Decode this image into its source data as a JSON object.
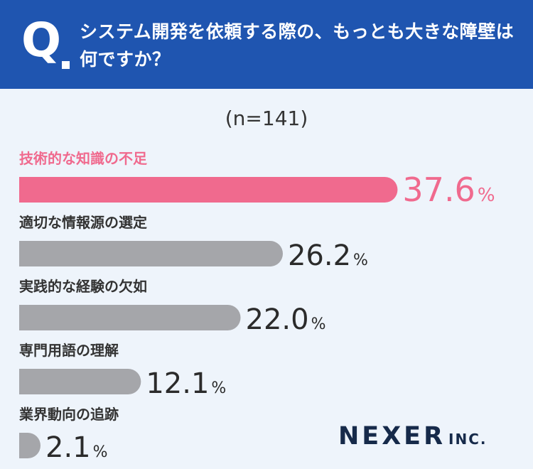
{
  "header": {
    "q_label": "Q",
    "question": "システム開発を依頼する際の、もっとも大きな障壁は何ですか？"
  },
  "sample_size": "(n=141)",
  "chart_data": {
    "type": "bar",
    "orientation": "horizontal",
    "title": "システム開発を依頼する際の、もっとも大きな障壁は何ですか？",
    "categories": [
      "技術的な知識の不足",
      "適切な情報源の選定",
      "実践的な経験の欠如",
      "専門用語の理解",
      "業界動向の追跡"
    ],
    "values": [
      37.6,
      26.2,
      22.0,
      12.1,
      2.1
    ],
    "value_labels": [
      "37.6",
      "26.2",
      "22.0",
      "12.1",
      "2.1"
    ],
    "unit": "%",
    "xlim": [
      0,
      100
    ],
    "highlight_index": 0,
    "colors": {
      "highlight": "#f06a8e",
      "default": "#a5a6aa",
      "text": "#2b2b2b"
    }
  },
  "brand": {
    "name": "NEXER",
    "suffix": "INC."
  }
}
